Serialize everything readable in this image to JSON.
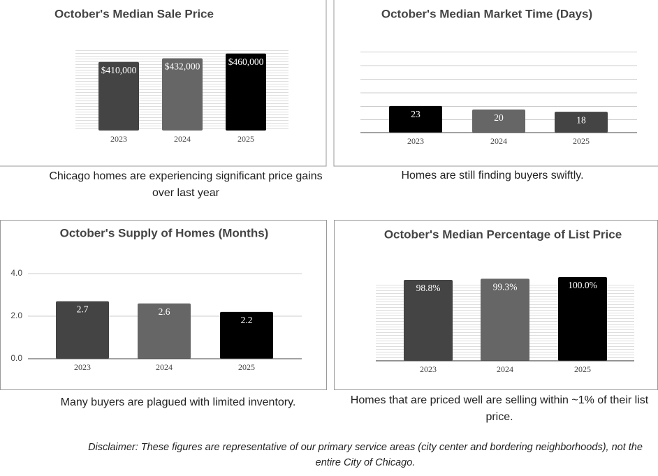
{
  "chart_data": [
    {
      "type": "bar",
      "title": "October's Median Sale Price",
      "categories": [
        "2023",
        "2024",
        "2025"
      ],
      "values": [
        410000,
        432000,
        460000
      ],
      "value_labels": [
        "$410,000",
        "$432,000",
        "$460,000"
      ],
      "colors": [
        "#444444",
        "#666666",
        "#000000"
      ],
      "ylim": [
        0,
        480000
      ]
    },
    {
      "type": "bar",
      "title": "October's Median Market Time (Days)",
      "categories": [
        "2023",
        "2024",
        "2025"
      ],
      "values": [
        23,
        20,
        18
      ],
      "colors": [
        "#000000",
        "#666666",
        "#444444"
      ],
      "ylim": [
        0,
        70
      ]
    },
    {
      "type": "bar",
      "title": "October's Supply of Homes (Months)",
      "categories": [
        "2023",
        "2024",
        "2025"
      ],
      "values": [
        2.7,
        2.6,
        2.2
      ],
      "colors": [
        "#444444",
        "#666666",
        "#000000"
      ],
      "ylim": [
        0,
        4
      ],
      "yticks": [
        {
          "value": 0,
          "label": "0.0"
        },
        {
          "value": 2,
          "label": "2.0"
        },
        {
          "value": 4,
          "label": "4.0"
        }
      ],
      "grid": true
    },
    {
      "type": "bar",
      "title": "October's Median Percentage of List Price",
      "categories": [
        "2023",
        "2024",
        "2025"
      ],
      "values": [
        98.8,
        99.3,
        100.0
      ],
      "value_labels": [
        "98.8%",
        "99.3%",
        "100.0%"
      ],
      "colors": [
        "#444444",
        "#666666",
        "#000000"
      ],
      "ylim": [
        64,
        100
      ]
    }
  ],
  "captions": [
    "Chicago homes are experiencing significant price gains over last year",
    "Homes are still finding buyers swiftly.",
    "Many buyers are plagued with limited inventory.",
    "Homes that are priced well are selling within ~1% of their list price."
  ],
  "disclaimer": "Disclaimer: These figures are representative of our primary service areas (city center and bordering neighborhoods), not the entire City of Chicago."
}
